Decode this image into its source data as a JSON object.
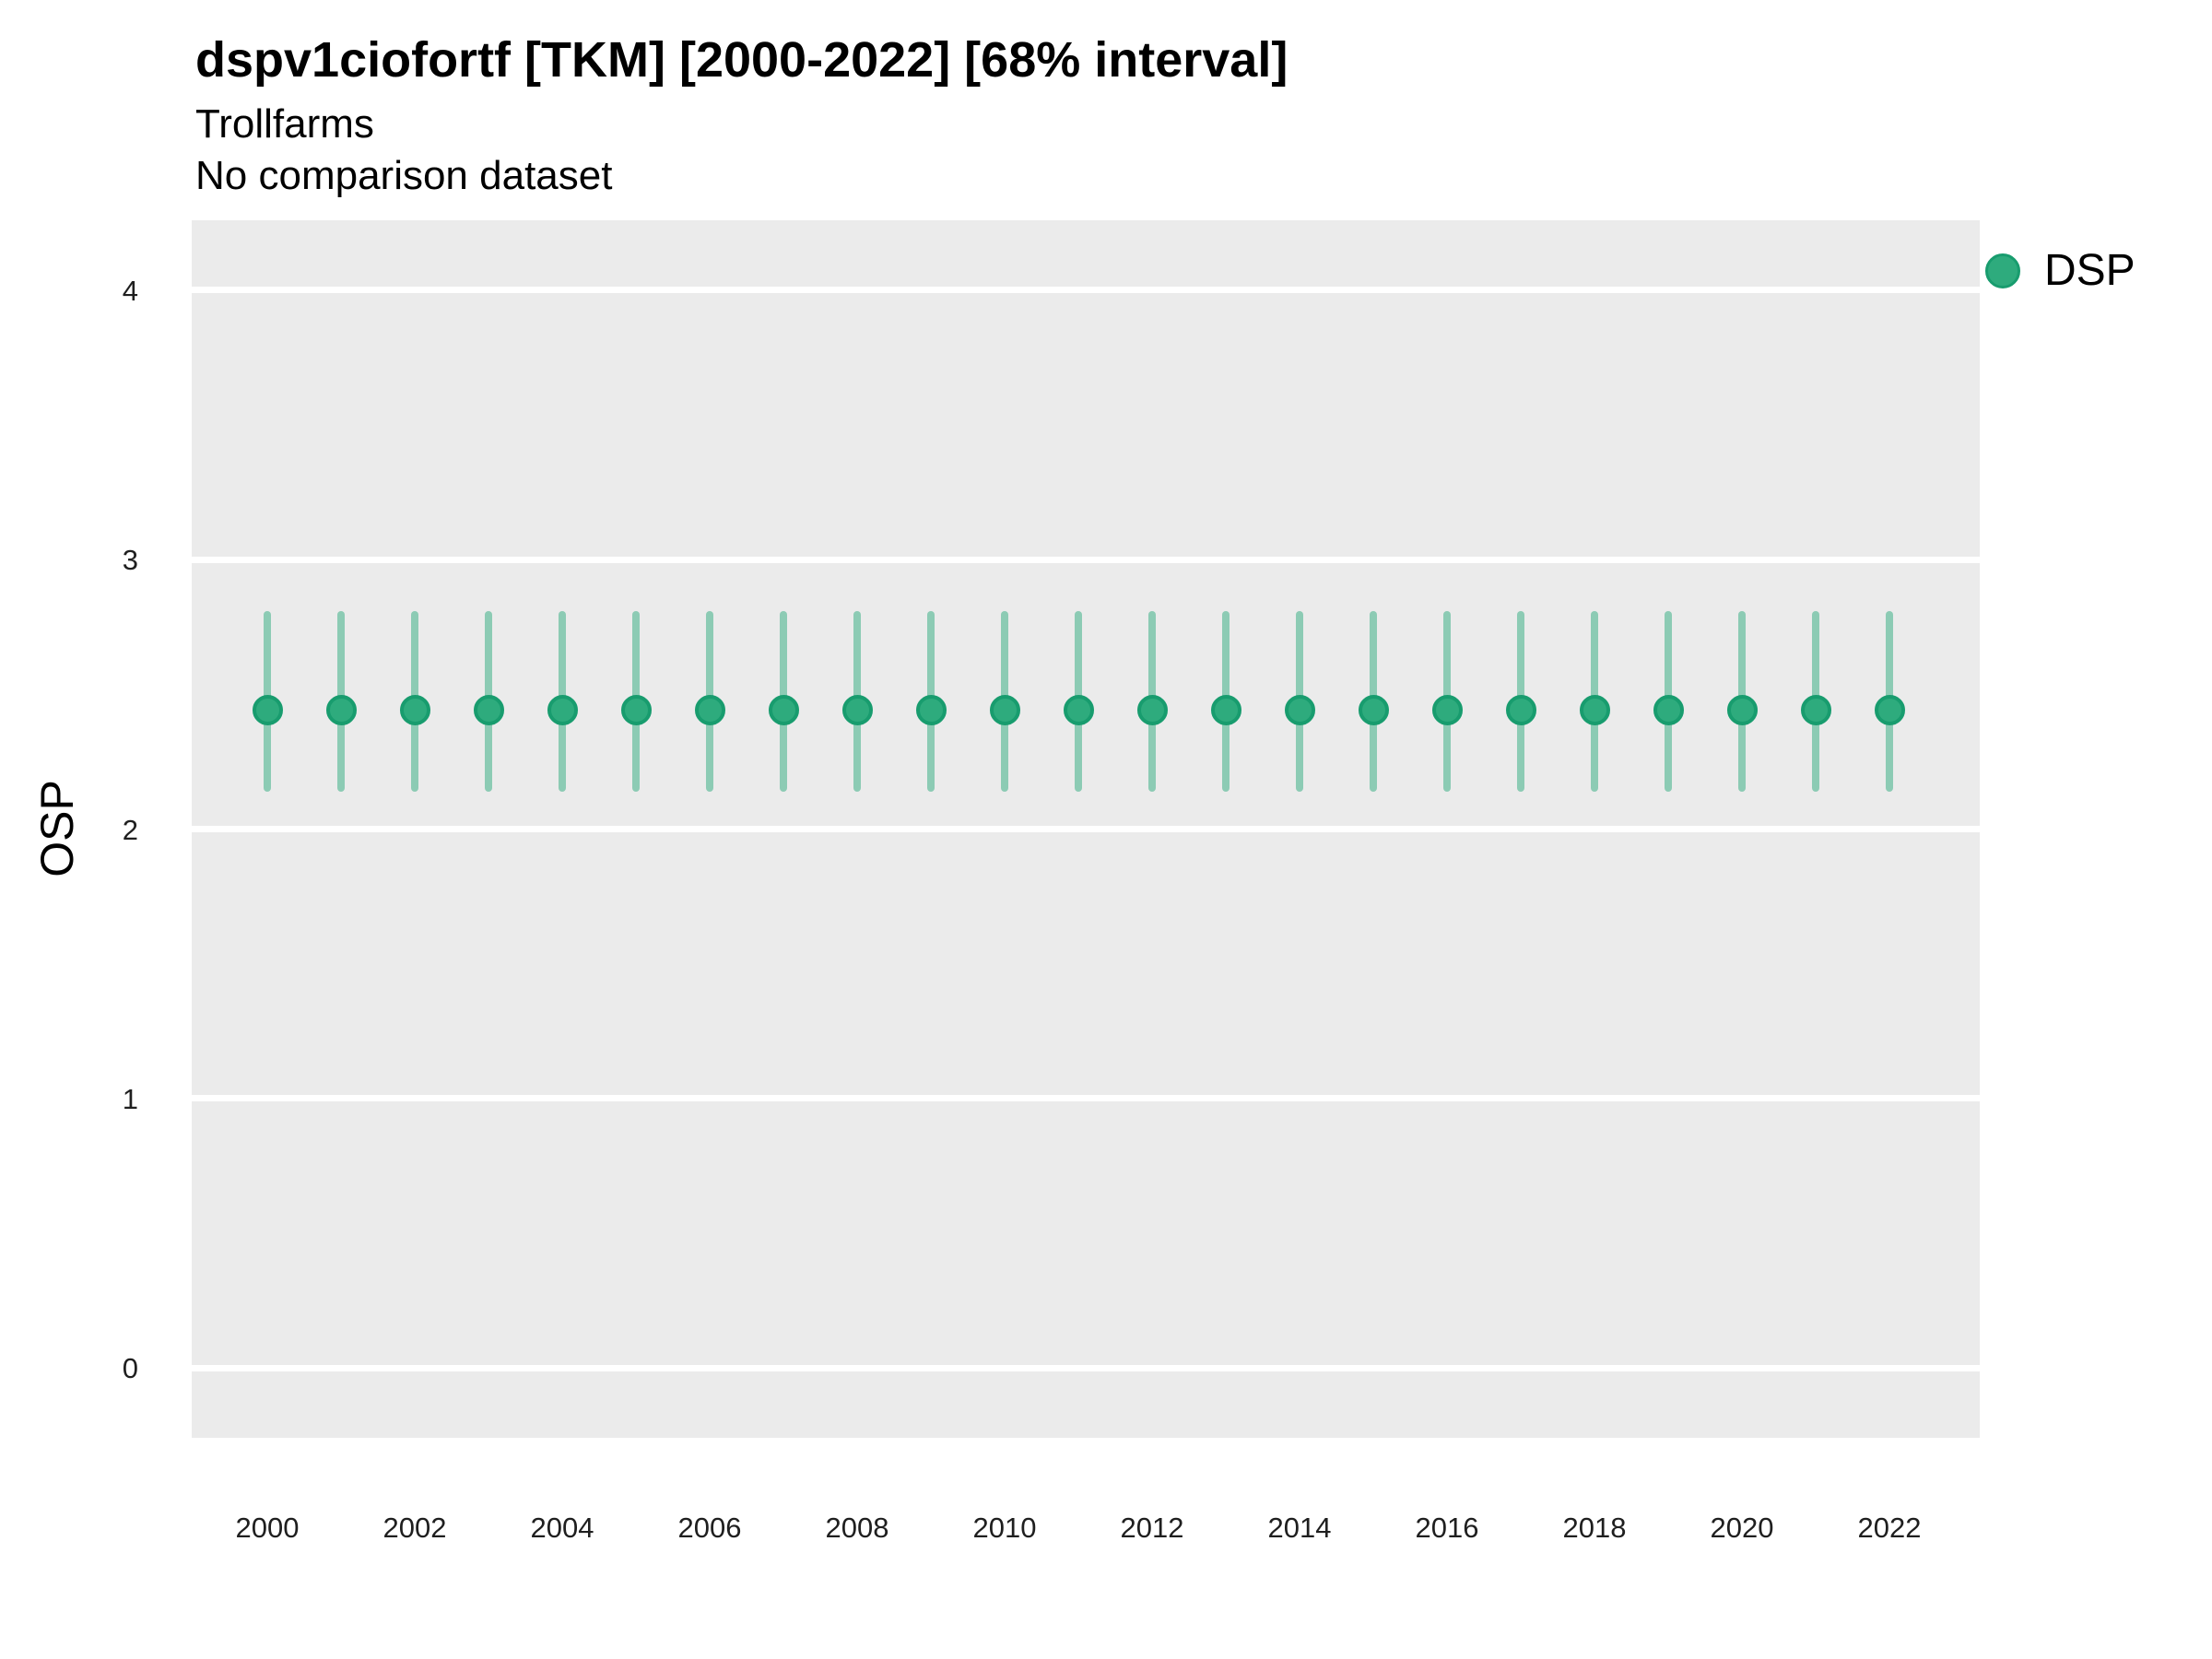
{
  "header": {
    "title": "dspv1ciofortf [TKM] [2000-2022] [68% interval]",
    "subtitle1": "Trollfarms",
    "subtitle2": "No comparison dataset"
  },
  "axes": {
    "y_title": "OSP"
  },
  "legend": {
    "items": [
      {
        "label": "DSP",
        "color": "#2eab7d"
      }
    ]
  },
  "chart_data": {
    "type": "scatter",
    "title": "dspv1ciofortf [TKM] [2000-2022] [68% interval]",
    "subtitle_lines": [
      "Trollfarms",
      "No comparison dataset"
    ],
    "xlabel": "",
    "ylabel": "OSP",
    "interval": "68%",
    "x": [
      2000,
      2001,
      2002,
      2003,
      2004,
      2005,
      2006,
      2007,
      2008,
      2009,
      2010,
      2011,
      2012,
      2013,
      2014,
      2015,
      2016,
      2017,
      2018,
      2019,
      2020,
      2021,
      2022
    ],
    "series": [
      {
        "name": "DSP",
        "values": [
          2.44,
          2.44,
          2.44,
          2.44,
          2.44,
          2.44,
          2.44,
          2.44,
          2.44,
          2.44,
          2.44,
          2.44,
          2.44,
          2.44,
          2.44,
          2.44,
          2.44,
          2.44,
          2.44,
          2.44,
          2.44,
          2.44,
          2.44
        ],
        "interval_low": [
          2.14,
          2.14,
          2.14,
          2.14,
          2.14,
          2.14,
          2.14,
          2.14,
          2.14,
          2.14,
          2.14,
          2.14,
          2.14,
          2.14,
          2.14,
          2.14,
          2.14,
          2.14,
          2.14,
          2.14,
          2.14,
          2.14,
          2.14
        ],
        "interval_high": [
          2.81,
          2.81,
          2.81,
          2.81,
          2.81,
          2.81,
          2.81,
          2.81,
          2.81,
          2.81,
          2.81,
          2.81,
          2.81,
          2.81,
          2.81,
          2.81,
          2.81,
          2.81,
          2.81,
          2.81,
          2.81,
          2.81,
          2.81
        ]
      }
    ],
    "xlim": [
      1998.975,
      2023.225
    ],
    "ylim": [
      -0.26,
      4.26
    ],
    "xticks": [
      2000,
      2002,
      2004,
      2006,
      2008,
      2010,
      2012,
      2014,
      2016,
      2018,
      2020,
      2022
    ],
    "yticks": [
      0,
      1,
      2,
      3,
      4
    ],
    "grid": "horizontal-major-white",
    "legend_position": "right-top",
    "colors": {
      "point_fill": "#2eab7d",
      "point_stroke": "#189c6e",
      "errorbar": "#8ccbb4",
      "panel_bg": "#ebebeb",
      "gridline": "#ffffff"
    }
  }
}
